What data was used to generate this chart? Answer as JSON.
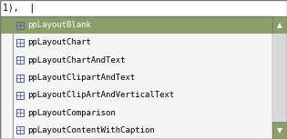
{
  "header_text": "1),  |",
  "items": [
    "ppLayoutBlank",
    "ppLayoutChart",
    "ppLayoutChartAndText",
    "ppLayoutClipartAndText",
    "ppLayoutClipArtAndVerticalText",
    "ppLayoutComparison",
    "ppLayoutContentWithCaption"
  ],
  "selected_index": 0,
  "selected_bg": "#8b9f6b",
  "selected_text_color": "#ffffff",
  "list_bg": "#f5f5f5",
  "normal_text_color": "#000000",
  "border_color": "#7a7a7a",
  "scrollbar_bg": "#e0e0e0",
  "scrollbar_btn_color": "#8b9f6b",
  "icon_border": "#5a6a9a",
  "icon_inner": "#5a6a9a",
  "header_bg": "#ffffff",
  "header_line_color": "#999999",
  "font_size": 6.5,
  "figw": 3.15,
  "figh": 1.53,
  "dpi": 100
}
